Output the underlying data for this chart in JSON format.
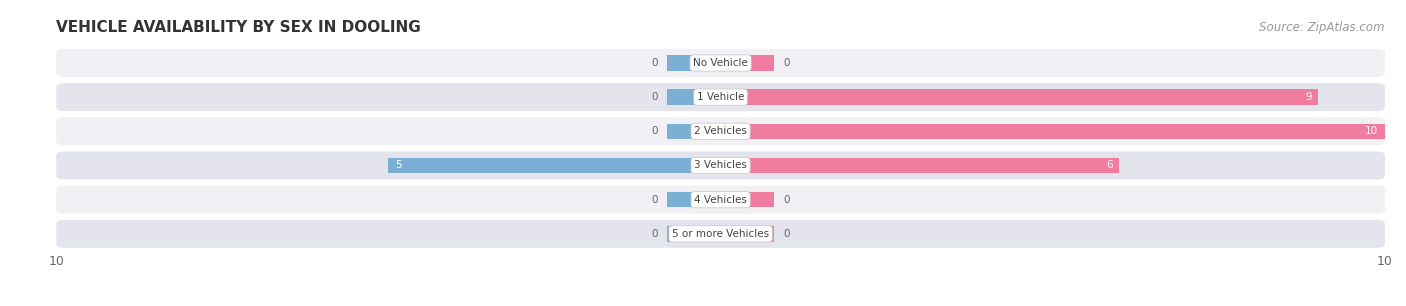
{
  "title": "VEHICLE AVAILABILITY BY SEX IN DOOLING",
  "source": "Source: ZipAtlas.com",
  "categories": [
    "No Vehicle",
    "1 Vehicle",
    "2 Vehicles",
    "3 Vehicles",
    "4 Vehicles",
    "5 or more Vehicles"
  ],
  "male_values": [
    0,
    0,
    0,
    5,
    0,
    0
  ],
  "female_values": [
    0,
    9,
    10,
    6,
    0,
    0
  ],
  "male_color": "#7bafd4",
  "female_color": "#f07ca0",
  "row_bg_color_light": "#f0f0f5",
  "row_bg_color_dark": "#e4e4ec",
  "xlim": 10,
  "title_fontsize": 11,
  "source_fontsize": 8.5,
  "label_fontsize": 7.5,
  "value_fontsize": 7.5,
  "legend_fontsize": 9,
  "fig_bg": "#ffffff",
  "title_color": "#333333",
  "source_color": "#999999",
  "label_color": "#444444",
  "zero_value_color": "#666666"
}
